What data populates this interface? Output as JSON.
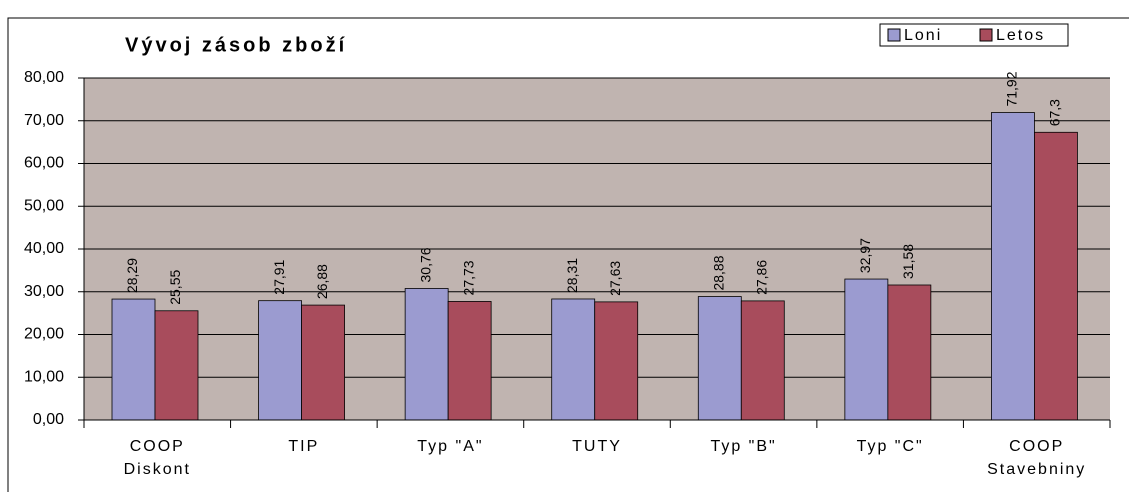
{
  "chart_data": {
    "type": "bar",
    "title": "Vývoj zásob zboží",
    "categories": [
      [
        "COOP",
        "Diskont"
      ],
      [
        "TIP"
      ],
      [
        "Typ \"A\""
      ],
      [
        "TUTY"
      ],
      [
        "Typ \"B\""
      ],
      [
        "Typ \"C\""
      ],
      [
        "COOP",
        "Stavebniny"
      ]
    ],
    "series": [
      {
        "name": "Loni",
        "color": "#9b9bd0",
        "values": [
          28.29,
          27.91,
          30.76,
          28.31,
          28.88,
          32.97,
          71.92
        ],
        "value_labels": [
          "28,29",
          "27,91",
          "30,76",
          "28,31",
          "28,88",
          "32,97",
          "71,92"
        ]
      },
      {
        "name": "Letos",
        "color": "#a84c5c",
        "values": [
          25.55,
          26.88,
          27.73,
          27.63,
          27.86,
          31.58,
          67.3
        ],
        "value_labels": [
          "25,55",
          "26,88",
          "27,73",
          "27,63",
          "27,86",
          "31,58",
          "67,3"
        ]
      }
    ],
    "ylim": [
      0,
      80
    ],
    "yticks": [
      {
        "value": 0,
        "label": "0,00"
      },
      {
        "value": 10,
        "label": "10,00"
      },
      {
        "value": 20,
        "label": "20,00"
      },
      {
        "value": 30,
        "label": "30,00"
      },
      {
        "value": 40,
        "label": "40,00"
      },
      {
        "value": 50,
        "label": "50,00"
      },
      {
        "value": 60,
        "label": "60,00"
      },
      {
        "value": 70,
        "label": "70,00"
      },
      {
        "value": 80,
        "label": "80,00"
      }
    ],
    "grid": true,
    "legend": "top-right"
  }
}
